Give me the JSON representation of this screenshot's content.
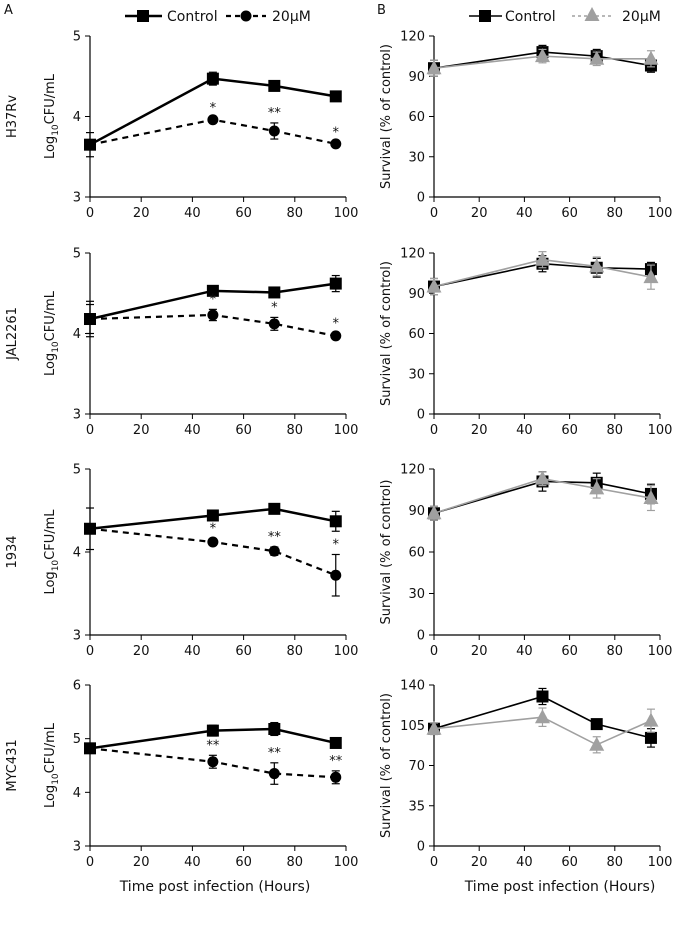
{
  "figure": {
    "panel_labels": [
      "A",
      "B"
    ],
    "strains": [
      "H37Rv",
      "JAL2261",
      "1934",
      "MYC431"
    ],
    "xlabel": "Time post infection (Hours)",
    "legend": {
      "control": "Control",
      "treated": "20μM"
    },
    "colors": {
      "control": "#000000",
      "treated_a": "#000000",
      "treated_b": "#a0a0a0"
    }
  },
  "chart_data": [
    {
      "panel": "A",
      "strain": "H37Rv",
      "type": "line",
      "ylabel": "Log10CFU/mL",
      "ylim": [
        3,
        5
      ],
      "yticks": [
        3,
        4,
        5
      ],
      "xlim": [
        0,
        100
      ],
      "xticks": [
        0,
        20,
        40,
        60,
        80,
        100
      ],
      "x": [
        0,
        48,
        72,
        96
      ],
      "series": [
        {
          "name": "Control",
          "values": [
            3.65,
            4.47,
            4.38,
            4.25
          ],
          "errors": [
            0.15,
            0.08,
            0.04,
            0.06
          ]
        },
        {
          "name": "20μM",
          "values": [
            3.65,
            3.96,
            3.82,
            3.66
          ],
          "errors": [
            0.0,
            0.02,
            0.1,
            0.02
          ]
        }
      ],
      "annotations": [
        {
          "x": 48,
          "text": "*"
        },
        {
          "x": 72,
          "text": "**"
        },
        {
          "x": 96,
          "text": "*"
        }
      ]
    },
    {
      "panel": "A",
      "strain": "JAL2261",
      "type": "line",
      "ylabel": "Log10CFU/mL",
      "ylim": [
        3,
        5
      ],
      "yticks": [
        3,
        4,
        5
      ],
      "xlim": [
        0,
        100
      ],
      "xticks": [
        0,
        20,
        40,
        60,
        80,
        100
      ],
      "x": [
        0,
        48,
        72,
        96
      ],
      "series": [
        {
          "name": "Control",
          "values": [
            4.18,
            4.53,
            4.51,
            4.62
          ],
          "errors": [
            0.18,
            0.06,
            0.04,
            0.1
          ]
        },
        {
          "name": "20μM",
          "values": [
            4.18,
            4.23,
            4.12,
            3.97
          ],
          "errors": [
            0.22,
            0.07,
            0.08,
            0.03
          ]
        }
      ],
      "annotations": [
        {
          "x": 48,
          "text": "*"
        },
        {
          "x": 72,
          "text": "*"
        },
        {
          "x": 96,
          "text": "*"
        }
      ]
    },
    {
      "panel": "A",
      "strain": "1934",
      "type": "line",
      "ylabel": "Log10CFU/mL",
      "ylim": [
        3,
        5
      ],
      "yticks": [
        3,
        4,
        5
      ],
      "xlim": [
        0,
        100
      ],
      "xticks": [
        0,
        20,
        40,
        60,
        80,
        100
      ],
      "x": [
        0,
        48,
        72,
        96
      ],
      "series": [
        {
          "name": "Control",
          "values": [
            4.28,
            4.44,
            4.52,
            4.37
          ],
          "errors": [
            0.25,
            0.04,
            0.03,
            0.12
          ]
        },
        {
          "name": "20μM",
          "values": [
            4.28,
            4.12,
            4.01,
            3.72
          ],
          "errors": [
            0.0,
            0.04,
            0.05,
            0.25
          ]
        }
      ],
      "annotations": [
        {
          "x": 48,
          "text": "*"
        },
        {
          "x": 72,
          "text": "**"
        },
        {
          "x": 96,
          "text": "*"
        }
      ]
    },
    {
      "panel": "A",
      "strain": "MYC431",
      "type": "line",
      "ylabel": "Log10CFU/mL",
      "ylim": [
        3,
        6
      ],
      "yticks": [
        3,
        4,
        5,
        6
      ],
      "xlim": [
        0,
        100
      ],
      "xticks": [
        0,
        20,
        40,
        60,
        80,
        100
      ],
      "x": [
        0,
        48,
        72,
        96
      ],
      "series": [
        {
          "name": "Control",
          "values": [
            4.82,
            5.15,
            5.18,
            4.92
          ],
          "errors": [
            0.0,
            0.1,
            0.12,
            0.07
          ]
        },
        {
          "name": "20μM",
          "values": [
            4.82,
            4.57,
            4.35,
            4.28
          ],
          "errors": [
            0.0,
            0.12,
            0.2,
            0.12
          ]
        }
      ],
      "annotations": [
        {
          "x": 48,
          "text": "**"
        },
        {
          "x": 72,
          "text": "**"
        },
        {
          "x": 96,
          "text": "**"
        }
      ]
    },
    {
      "panel": "B",
      "strain": "H37Rv",
      "type": "line",
      "ylabel": "Survival (% of control)",
      "ylim": [
        0,
        120
      ],
      "yticks": [
        0,
        30,
        60,
        90,
        120
      ],
      "xlim": [
        0,
        100
      ],
      "xticks": [
        0,
        20,
        40,
        60,
        80,
        100
      ],
      "x": [
        0,
        48,
        72,
        96
      ],
      "series": [
        {
          "name": "Control",
          "values": [
            96,
            108,
            105,
            98
          ],
          "errors": [
            6,
            5,
            5,
            5
          ]
        },
        {
          "name": "20μM",
          "values": [
            96,
            105,
            103,
            103
          ],
          "errors": [
            6,
            5,
            5,
            6
          ]
        }
      ]
    },
    {
      "panel": "B",
      "strain": "JAL2261",
      "type": "line",
      "ylabel": "Survival (% of control)",
      "ylim": [
        0,
        120
      ],
      "yticks": [
        0,
        30,
        60,
        90,
        120
      ],
      "xlim": [
        0,
        100
      ],
      "xticks": [
        0,
        20,
        40,
        60,
        80,
        100
      ],
      "x": [
        0,
        48,
        72,
        96
      ],
      "series": [
        {
          "name": "Control",
          "values": [
            95,
            112,
            109,
            108
          ],
          "errors": [
            6,
            6,
            7,
            5
          ]
        },
        {
          "name": "20μM",
          "values": [
            95,
            115,
            110,
            102
          ],
          "errors": [
            6,
            6,
            7,
            9
          ]
        }
      ]
    },
    {
      "panel": "B",
      "strain": "1934",
      "type": "line",
      "ylabel": "Survival (% of control)",
      "ylim": [
        0,
        120
      ],
      "yticks": [
        0,
        30,
        60,
        90,
        120
      ],
      "xlim": [
        0,
        100
      ],
      "xticks": [
        0,
        20,
        40,
        60,
        80,
        100
      ],
      "x": [
        0,
        48,
        72,
        96
      ],
      "series": [
        {
          "name": "Control",
          "values": [
            88,
            111,
            110,
            102
          ],
          "errors": [
            5,
            7,
            7,
            7
          ]
        },
        {
          "name": "20μM",
          "values": [
            88,
            113,
            106,
            99
          ],
          "errors": [
            5,
            5,
            7,
            9
          ]
        }
      ]
    },
    {
      "panel": "B",
      "strain": "MYC431",
      "type": "line",
      "ylabel": "Survival (% of control)",
      "ylim": [
        0,
        140
      ],
      "yticks": [
        0,
        35,
        70,
        105,
        140
      ],
      "xlim": [
        0,
        100
      ],
      "xticks": [
        0,
        20,
        40,
        60,
        80,
        100
      ],
      "x": [
        0,
        48,
        72,
        96
      ],
      "series": [
        {
          "name": "Control",
          "values": [
            102,
            130,
            106,
            94
          ],
          "errors": [
            5,
            7,
            3,
            8
          ]
        },
        {
          "name": "20μM",
          "values": [
            102,
            112,
            88,
            109
          ],
          "errors": [
            5,
            8,
            7,
            10
          ]
        }
      ]
    }
  ]
}
